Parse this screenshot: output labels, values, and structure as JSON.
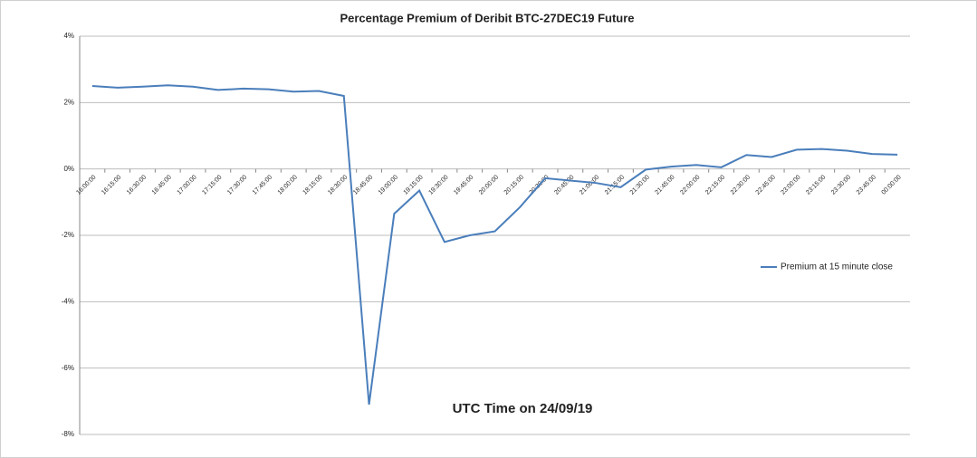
{
  "chart_data": {
    "type": "line",
    "title": "Percentage Premium of Deribit BTC-27DEC19 Future",
    "annotation": "UTC Time on 24/09/19",
    "categories": [
      "16:00:00",
      "16:15:00",
      "16:30:00",
      "16:45:00",
      "17:00:00",
      "17:15:00",
      "17:30:00",
      "17:45:00",
      "18:00:00",
      "18:15:00",
      "18:30:00",
      "18:45:00",
      "19:00:00",
      "19:15:00",
      "19:30:00",
      "19:45:00",
      "20:00:00",
      "20:15:00",
      "20:30:00",
      "20:45:00",
      "21:00:00",
      "21:15:00",
      "21:30:00",
      "21:45:00",
      "22:00:00",
      "22:15:00",
      "22:30:00",
      "22:45:00",
      "23:00:00",
      "23:15:00",
      "23:30:00",
      "23:45:00",
      "00:00:00"
    ],
    "series": [
      {
        "name": "Premium at 15 minute close",
        "color": "#4a7ebb",
        "values": [
          2.5,
          2.45,
          2.48,
          2.52,
          2.48,
          2.38,
          2.42,
          2.4,
          2.33,
          2.35,
          2.2,
          -7.1,
          -1.35,
          -0.65,
          -2.2,
          -2.0,
          -1.88,
          -1.15,
          -0.28,
          -0.35,
          -0.42,
          -0.55,
          -0.02,
          0.07,
          0.12,
          0.05,
          0.42,
          0.36,
          0.58,
          0.6,
          0.55,
          0.45,
          0.43
        ]
      }
    ],
    "ylim": [
      -8,
      4
    ],
    "yticks": [
      {
        "value": -8,
        "label": "-8%"
      },
      {
        "value": -6,
        "label": "-6%"
      },
      {
        "value": -4,
        "label": "-4%"
      },
      {
        "value": -2,
        "label": "-2%"
      },
      {
        "value": 0,
        "label": "0%"
      },
      {
        "value": 2,
        "label": "2%"
      },
      {
        "value": 4,
        "label": "4%"
      }
    ],
    "grid": true,
    "legend": "right"
  }
}
